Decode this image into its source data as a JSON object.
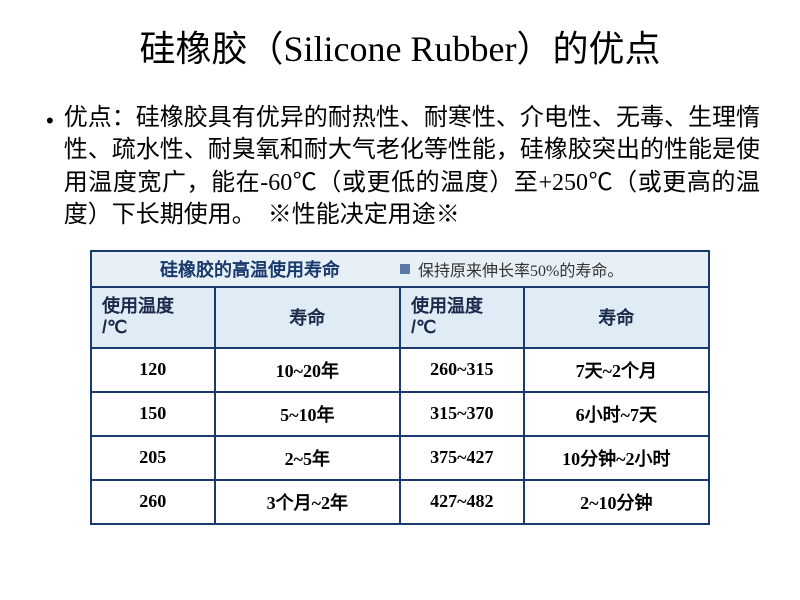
{
  "title": "硅橡胶（Silicone Rubber）的优点",
  "bullet": "•",
  "body": "优点：硅橡胶具有优异的耐热性、耐寒性、介电性、无毒、生理惰性、疏水性、耐臭氧和耐大气老化等性能，硅橡胶突出的性能是使用温度宽广，能在-60℃（或更低的温度）至+250℃（或更高的温度）下长期使用。　※性能决定用途※",
  "table": {
    "caption": "硅橡胶的高温使用寿命",
    "note": "保持原来伸长率50%的寿命。",
    "headers": {
      "temp_label_1": "使用温度",
      "temp_label_2": "/℃",
      "life_label": "寿命"
    },
    "rows": [
      {
        "t1": "120",
        "l1": "10~20年",
        "t2": "260~315",
        "l2": "7天~2个月"
      },
      {
        "t1": "150",
        "l1": "5~10年",
        "t2": "315~370",
        "l2": "6小时~7天"
      },
      {
        "t1": "205",
        "l1": "2~5年",
        "t2": "375~427",
        "l2": "10分钟~2小时"
      },
      {
        "t1": "260",
        "l1": "3个月~2年",
        "t2": "427~482",
        "l2": "2~10分钟"
      }
    ],
    "colors": {
      "header_bg": "#e0ecf5",
      "border": "#1a3a6e",
      "caption_bg": "#e8f0f7"
    }
  }
}
